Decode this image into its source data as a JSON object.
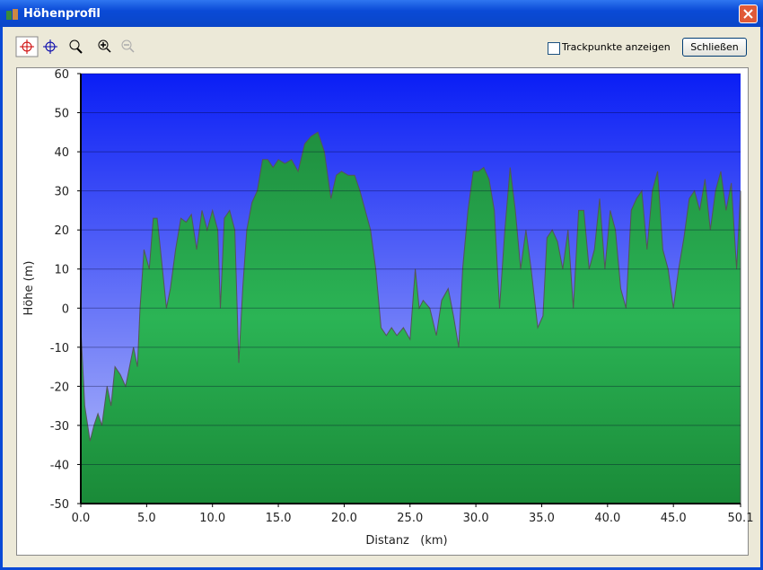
{
  "window": {
    "title": "Höhenprofil"
  },
  "toolbar": {
    "checkbox_label": "Trackpunkte anzeigen",
    "close_button": "Schließen"
  },
  "chart_data": {
    "type": "area",
    "xlabel": "Distanz   (km)",
    "ylabel": "Höhe (m)",
    "x": [
      0,
      0.3,
      0.7,
      1.0,
      1.3,
      1.6,
      2.0,
      2.3,
      2.6,
      3.0,
      3.4,
      3.7,
      4.0,
      4.3,
      4.5,
      4.8,
      5.2,
      5.5,
      5.8,
      6.2,
      6.5,
      6.8,
      7.2,
      7.6,
      8.0,
      8.4,
      8.8,
      9.2,
      9.6,
      10.0,
      10.4,
      10.6,
      10.9,
      11.3,
      11.7,
      12.0,
      12.3,
      12.6,
      13.0,
      13.4,
      13.8,
      14.2,
      14.6,
      15.0,
      15.5,
      16.0,
      16.5,
      17.0,
      17.5,
      18.0,
      18.5,
      19.0,
      19.4,
      19.8,
      20.3,
      20.8,
      21.2,
      21.6,
      22.0,
      22.4,
      22.8,
      23.2,
      23.6,
      24.0,
      24.5,
      25.0,
      25.4,
      25.7,
      26.0,
      26.5,
      27.0,
      27.4,
      27.9,
      28.3,
      28.7,
      29.0,
      29.4,
      29.8,
      30.2,
      30.6,
      31.0,
      31.4,
      31.8,
      32.2,
      32.6,
      33.0,
      33.4,
      33.8,
      34.2,
      34.7,
      35.1,
      35.4,
      35.8,
      36.2,
      36.6,
      37.0,
      37.4,
      37.8,
      38.2,
      38.6,
      39.0,
      39.4,
      39.8,
      40.2,
      40.6,
      41.0,
      41.4,
      41.8,
      42.2,
      42.6,
      43.0,
      43.4,
      43.8,
      44.2,
      44.6,
      45.0,
      45.4,
      45.8,
      46.2,
      46.6,
      47.0,
      47.4,
      47.8,
      48.2,
      48.6,
      49.0,
      49.4,
      49.8,
      50.1
    ],
    "series": [
      {
        "name": "Höhe",
        "color": "#22a04a",
        "values": [
          -5,
          -25,
          -34,
          -30,
          -27,
          -30,
          -20,
          -25,
          -15,
          -17,
          -20,
          -15,
          -10,
          -15,
          0,
          15,
          10,
          23,
          23,
          10,
          0,
          5,
          15,
          23,
          22,
          24,
          15,
          25,
          20,
          25,
          20,
          0,
          23,
          25,
          20,
          -14,
          5,
          20,
          27,
          30,
          38,
          38,
          36,
          38,
          37,
          38,
          35,
          42,
          44,
          45,
          40,
          28,
          34,
          35,
          34,
          34,
          30,
          25,
          20,
          10,
          -5,
          -7,
          -5,
          -7,
          -5,
          -8,
          10,
          0,
          2,
          0,
          -7,
          2,
          5,
          -2,
          -10,
          10,
          25,
          35,
          35,
          36,
          33,
          25,
          0,
          20,
          36,
          25,
          10,
          20,
          10,
          -5,
          -2,
          18,
          20,
          17,
          10,
          20,
          0,
          25,
          25,
          10,
          15,
          28,
          10,
          25,
          20,
          5,
          0,
          25,
          28,
          30,
          15,
          30,
          35,
          15,
          10,
          0,
          10,
          18,
          28,
          30,
          25,
          33,
          20,
          30,
          35,
          25,
          32,
          10,
          30
        ]
      }
    ],
    "xlim": [
      0,
      50.1
    ],
    "ylim": [
      -50,
      60
    ],
    "xticks": [
      {
        "value": 0,
        "label": "0.0"
      },
      {
        "value": 5,
        "label": "5.0"
      },
      {
        "value": 10,
        "label": "10.0"
      },
      {
        "value": 15,
        "label": "15.0"
      },
      {
        "value": 20,
        "label": "20.0"
      },
      {
        "value": 25,
        "label": "25.0"
      },
      {
        "value": 30,
        "label": "30.0"
      },
      {
        "value": 35,
        "label": "35.0"
      },
      {
        "value": 40,
        "label": "40.0"
      },
      {
        "value": 45,
        "label": "45.0"
      },
      50.1
    ],
    "yticks": [
      -50,
      -40,
      -30,
      -20,
      -10,
      0,
      10,
      20,
      30,
      40,
      50,
      60
    ],
    "grid": true
  }
}
